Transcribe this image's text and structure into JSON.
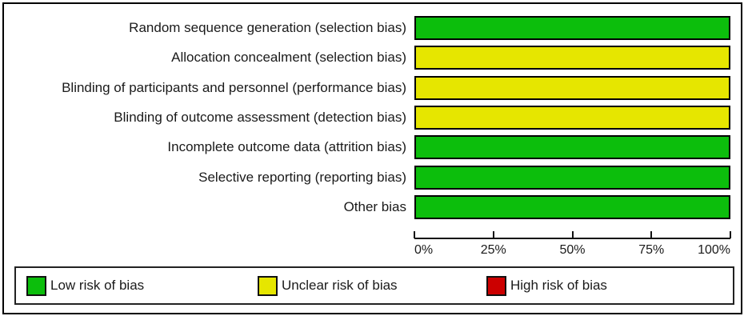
{
  "chart_data": {
    "type": "bar",
    "subtype": "horizontal_stacked_percentage",
    "title": "",
    "xlabel": "",
    "ylabel": "",
    "categories": [
      "Random sequence generation (selection bias)",
      "Allocation concealment (selection bias)",
      "Blinding of participants and personnel (performance bias)",
      "Blinding of outcome assessment (detection bias)",
      "Incomplete outcome data (attrition bias)",
      "Selective reporting (reporting bias)",
      "Other bias"
    ],
    "series": [
      {
        "name": "Low risk of bias",
        "risk": "low",
        "color": "#0CBE0C",
        "values": [
          100,
          0,
          0,
          0,
          100,
          100,
          100
        ]
      },
      {
        "name": "Unclear risk of bias",
        "risk": "unclear",
        "color": "#E6E600",
        "values": [
          0,
          100,
          100,
          100,
          0,
          0,
          0
        ]
      },
      {
        "name": "High risk of bias",
        "risk": "high",
        "color": "#CC0000",
        "values": [
          0,
          0,
          0,
          0,
          0,
          0,
          0
        ]
      }
    ],
    "x_axis": {
      "min": 0,
      "max": 100,
      "tick_labels": [
        "0%",
        "25%",
        "50%",
        "75%",
        "100%"
      ],
      "grid": false
    },
    "legend": {
      "position": "bottom",
      "items": [
        {
          "label": "Low risk of bias",
          "color": "#0CBE0C"
        },
        {
          "label": "Unclear risk of bias",
          "color": "#E6E600"
        },
        {
          "label": "High risk of bias",
          "color": "#CC0000"
        }
      ]
    },
    "colors": {
      "bar_border": "#000000",
      "axis": "#111111",
      "text": "#1a1a1a"
    }
  }
}
